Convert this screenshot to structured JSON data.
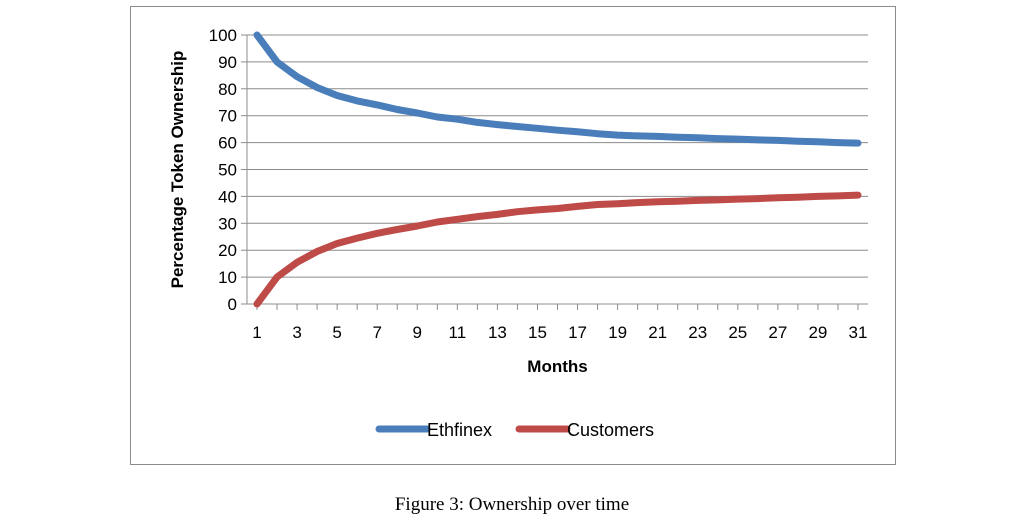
{
  "caption": "Figure 3: Ownership over time",
  "chart_data": {
    "type": "line",
    "title": "",
    "xlabel": "Months",
    "ylabel": "Percentage Token Ownership",
    "x": [
      1,
      2,
      3,
      4,
      5,
      6,
      7,
      8,
      9,
      10,
      11,
      12,
      13,
      14,
      15,
      16,
      17,
      18,
      19,
      20,
      21,
      22,
      23,
      24,
      25,
      26,
      27,
      28,
      29,
      30,
      31
    ],
    "x_tick_labels": [
      "1",
      "3",
      "5",
      "7",
      "9",
      "11",
      "13",
      "15",
      "17",
      "19",
      "21",
      "23",
      "25",
      "27",
      "29",
      "31"
    ],
    "ylim": [
      0,
      100
    ],
    "y_tick_labels": [
      "0",
      "10",
      "20",
      "30",
      "40",
      "50",
      "60",
      "70",
      "80",
      "90",
      "100"
    ],
    "grid": "horizontal",
    "legend_position": "bottom",
    "series": [
      {
        "name": "Ethfinex",
        "color": "#4a7ebb",
        "values": [
          100,
          90,
          84.5,
          80.5,
          77.5,
          75.5,
          74,
          72.3,
          71,
          69.5,
          68.7,
          67.5,
          66.7,
          66,
          65.3,
          64.6,
          64,
          63.3,
          62.8,
          62.5,
          62.3,
          62,
          61.8,
          61.5,
          61.3,
          61,
          60.8,
          60.5,
          60.3,
          60,
          59.8
        ]
      },
      {
        "name": "Customers",
        "color": "#be4b48",
        "values": [
          0,
          10,
          15.5,
          19.5,
          22.5,
          24.5,
          26.3,
          27.7,
          29,
          30.5,
          31.5,
          32.5,
          33.3,
          34.3,
          35,
          35.5,
          36.3,
          37,
          37.3,
          37.7,
          38,
          38.2,
          38.5,
          38.7,
          39,
          39.2,
          39.5,
          39.7,
          40,
          40.2,
          40.5
        ]
      }
    ]
  }
}
